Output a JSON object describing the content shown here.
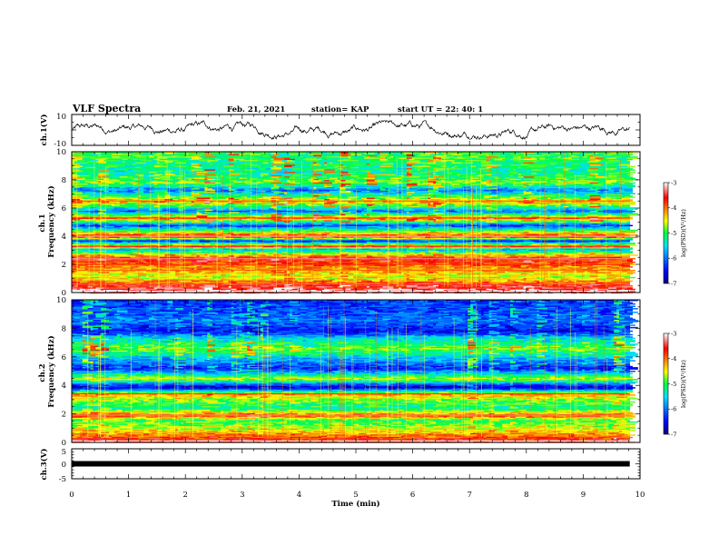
{
  "header": {
    "title": "VLF Spectra",
    "date": "Feb. 21, 2021",
    "station": "station= KAP",
    "start": "start UT =  22: 40: 1"
  },
  "chart_data": [
    {
      "type": "line",
      "panel": "ch1-waveform",
      "ylabel": "ch.1(V)",
      "ylim": [
        -10,
        10
      ],
      "yticks": [
        "10",
        "-10"
      ],
      "xlim": [
        0,
        10
      ],
      "trace_range": [
        -6,
        6
      ],
      "trace_end": 9.82
    },
    {
      "type": "heatmap",
      "panel": "ch1-spectrogram",
      "ylabel": "ch.1\nFrequency (kHz)",
      "ylim": [
        0,
        10
      ],
      "yticks": [
        "10",
        "8",
        "6",
        "4",
        "2",
        "0"
      ],
      "xlim": [
        0,
        10
      ],
      "data_end": 9.82,
      "color_scale": {
        "label": "log(PSD)(V²/Hz)",
        "range": [
          -7,
          -3
        ],
        "ticks": [
          "-3",
          "-4",
          "-5",
          "-6",
          "-7"
        ]
      },
      "bands": [
        {
          "f": 0.1,
          "level": -3.2
        },
        {
          "f": 0.6,
          "level": -3.7
        },
        {
          "f": 1.1,
          "level": -4.6
        },
        {
          "f": 1.6,
          "level": -4.2
        },
        {
          "f": 2.0,
          "level": -4.0
        },
        {
          "f": 2.4,
          "level": -3.6
        },
        {
          "f": 2.7,
          "level": -4.3
        },
        {
          "f": 3.1,
          "level": -5.8
        },
        {
          "f": 3.3,
          "level": -3.8
        },
        {
          "f": 3.7,
          "level": -6.4
        },
        {
          "f": 4.0,
          "level": -3.5
        },
        {
          "f": 4.8,
          "level": -6.3
        },
        {
          "f": 5.3,
          "level": -4.0
        },
        {
          "f": 5.8,
          "level": -6.0
        },
        {
          "f": 6.5,
          "level": -4.2
        },
        {
          "f": 7.3,
          "level": -6.0
        },
        {
          "f": 7.8,
          "level": -4.8
        },
        {
          "f": 8.6,
          "level": -5.2
        },
        {
          "f": 9.7,
          "level": -5.0
        }
      ]
    },
    {
      "type": "heatmap",
      "panel": "ch2-spectrogram",
      "ylabel": "ch.2\nFrequency (kHz)",
      "ylim": [
        0,
        10
      ],
      "yticks": [
        "10",
        "8",
        "6",
        "4",
        "2",
        "0"
      ],
      "xlim": [
        0,
        10
      ],
      "data_end": 9.82,
      "color_scale": {
        "label": "log(PSD)(V²/Hz)",
        "range": [
          -7,
          -3
        ],
        "ticks": [
          "-3",
          "-4",
          "-5",
          "-6",
          "-7"
        ]
      },
      "bands": [
        {
          "f": 0.1,
          "level": -3.3
        },
        {
          "f": 1.0,
          "level": -4.4
        },
        {
          "f": 1.6,
          "level": -4.8
        },
        {
          "f": 1.9,
          "level": -3.6
        },
        {
          "f": 2.4,
          "level": -5.0
        },
        {
          "f": 3.0,
          "level": -4.6
        },
        {
          "f": 3.4,
          "level": -4.0
        },
        {
          "f": 3.9,
          "level": -6.6
        },
        {
          "f": 4.5,
          "level": -4.4
        },
        {
          "f": 5.2,
          "level": -6.2
        },
        {
          "f": 5.9,
          "level": -5.5
        },
        {
          "f": 6.6,
          "level": -4.6
        },
        {
          "f": 7.4,
          "level": -5.4
        },
        {
          "f": 7.8,
          "level": -6.3
        },
        {
          "f": 8.6,
          "level": -5.8
        },
        {
          "f": 9.3,
          "level": -6.0
        },
        {
          "f": 9.8,
          "level": -6.1
        }
      ]
    },
    {
      "type": "line",
      "panel": "ch3-waveform",
      "ylabel": "ch.3(V)",
      "ylim": [
        -5,
        5
      ],
      "yticks": [
        "5",
        "0",
        "-5"
      ],
      "xlim": [
        0,
        10
      ],
      "trace_level": 0,
      "trace_end": 9.82
    }
  ],
  "xaxis": {
    "label": "Time (min)",
    "ticks": [
      "0",
      "1",
      "2",
      "3",
      "4",
      "5",
      "6",
      "7",
      "8",
      "9",
      "10"
    ]
  }
}
